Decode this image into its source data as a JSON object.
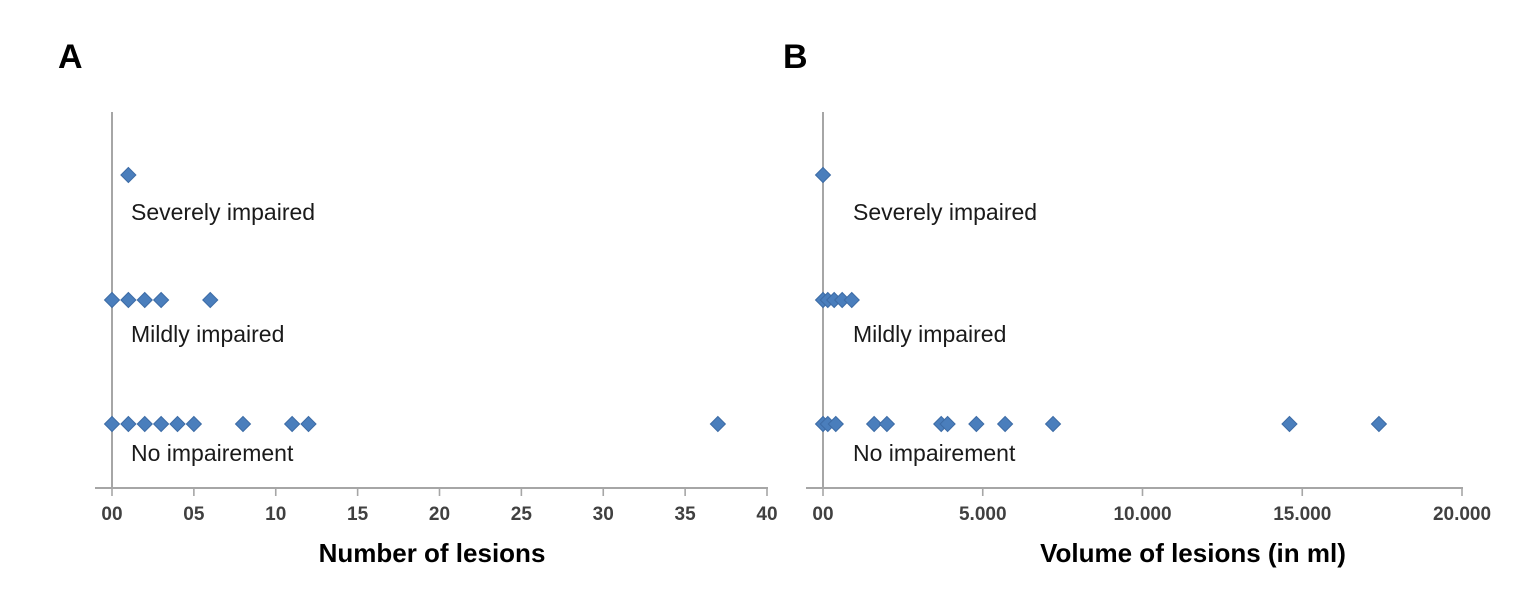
{
  "figure": {
    "background": "#ffffff"
  },
  "styles": {
    "marker_color": "#4a7ebc",
    "marker_edge_color": "#3d6ca6",
    "axis_color": "#a6a6a6",
    "tick_label_color": "#404040",
    "text_color": "#1a1a1a"
  },
  "chart_data": [
    {
      "type": "scatter",
      "panel_label": "A",
      "xlabel": "Number of lesions",
      "xlim": [
        0,
        40
      ],
      "grid": false,
      "legend": false,
      "marker": {
        "shape": "diamond"
      },
      "xticks": [
        {
          "value": 0,
          "label": "00"
        },
        {
          "value": 5,
          "label": "05"
        },
        {
          "value": 10,
          "label": "10"
        },
        {
          "value": 15,
          "label": "15"
        },
        {
          "value": 20,
          "label": "20"
        },
        {
          "value": 25,
          "label": "25"
        },
        {
          "value": 30,
          "label": "30"
        },
        {
          "value": 35,
          "label": "35"
        },
        {
          "value": 40,
          "label": "40"
        }
      ],
      "categories": [
        {
          "name": "Severely impaired",
          "values": [
            1
          ]
        },
        {
          "name": "Mildly impaired",
          "values": [
            0,
            1,
            2,
            3,
            6
          ]
        },
        {
          "name": "No impairement",
          "values": [
            0,
            1,
            2,
            3,
            4,
            5,
            8,
            11,
            12,
            37
          ]
        }
      ]
    },
    {
      "type": "scatter",
      "panel_label": "B",
      "xlabel": "Volume of lesions (in ml)",
      "xlim": [
        0,
        20000
      ],
      "grid": false,
      "legend": false,
      "marker": {
        "shape": "diamond"
      },
      "xticks": [
        {
          "value": 0,
          "label": "00"
        },
        {
          "value": 5000,
          "label": "5.000"
        },
        {
          "value": 10000,
          "label": "10.000"
        },
        {
          "value": 15000,
          "label": "15.000"
        },
        {
          "value": 20000,
          "label": "20.000"
        }
      ],
      "categories": [
        {
          "name": "Severely impaired",
          "values": [
            0
          ]
        },
        {
          "name": "Mildly impaired",
          "values": [
            0,
            150,
            350,
            600,
            900
          ]
        },
        {
          "name": "No impairement",
          "values": [
            0,
            150,
            400,
            1600,
            2000,
            3700,
            3900,
            4800,
            5700,
            7200,
            14600,
            17400
          ]
        }
      ]
    }
  ]
}
